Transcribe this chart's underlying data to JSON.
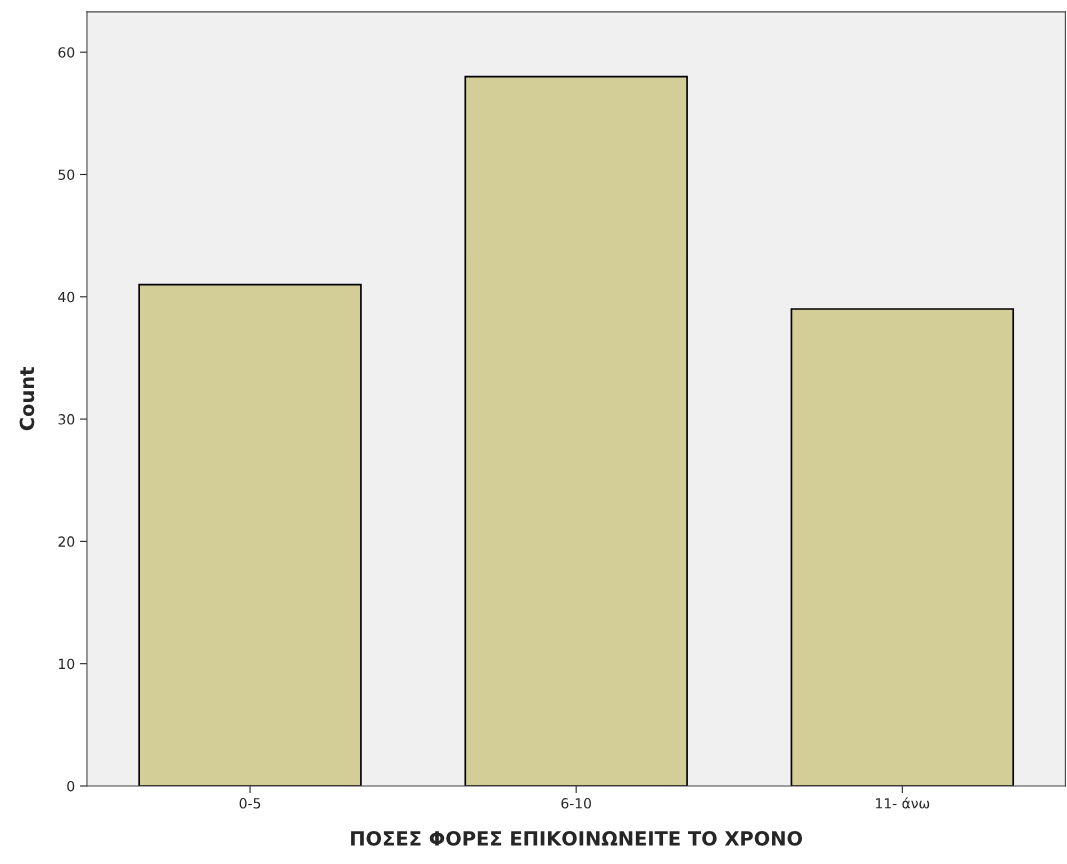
{
  "chart_data": {
    "type": "bar",
    "xlabel": "ΠΟΣΕΣ ΦΟΡΕΣ ΕΠΙΚΟΙΝΩΝΕΙΤΕ ΤΟ ΧΡΟΝΟ",
    "ylabel": "Count",
    "categories": [
      "0-5",
      "6-10",
      "11- άνω"
    ],
    "values": [
      41,
      58,
      39
    ],
    "color": "#d3ce98",
    "ylim": [
      0,
      63.3
    ],
    "yticks": [
      0,
      10,
      20,
      30,
      40,
      50,
      60
    ],
    "grid": false,
    "legend": false
  }
}
